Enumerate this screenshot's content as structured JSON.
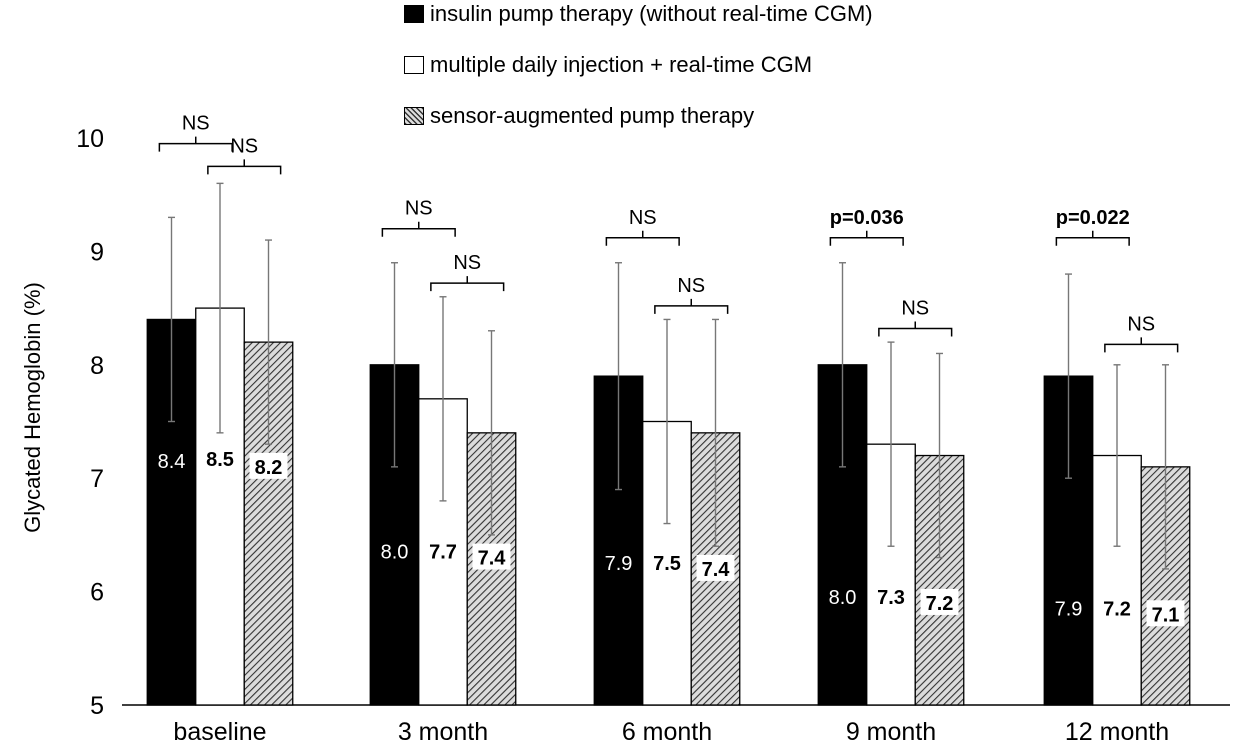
{
  "chart_data": {
    "type": "bar",
    "ylabel": "Glycated Hemoglobin (%)",
    "xlabel": "",
    "ylim": [
      5,
      10
    ],
    "yticks": [
      "5",
      "6",
      "7",
      "8",
      "9",
      "10"
    ],
    "categories": [
      "baseline",
      "3 month",
      "6 month",
      "9 month",
      "12 month"
    ],
    "series": [
      {
        "name": "insulin pump therapy (without real-time CGM)",
        "fill": "black",
        "values": [
          8.4,
          8.0,
          7.9,
          8.0,
          7.9
        ],
        "labels": [
          "8.4",
          "8.0",
          "7.9",
          "8.0",
          "7.9"
        ],
        "error_low": [
          7.5,
          7.1,
          6.9,
          7.1,
          7.0
        ],
        "error_high": [
          9.3,
          8.9,
          8.9,
          8.9,
          8.8
        ]
      },
      {
        "name": "multiple daily injection + real-time CGM",
        "fill": "white",
        "values": [
          8.5,
          7.7,
          7.5,
          7.3,
          7.2
        ],
        "labels": [
          "8.5",
          "7.7",
          "7.5",
          "7.3",
          "7.2"
        ],
        "error_low": [
          7.4,
          6.8,
          6.6,
          6.4,
          6.4
        ],
        "error_high": [
          9.6,
          8.6,
          8.4,
          8.2,
          8.0
        ]
      },
      {
        "name": "sensor-augmented pump therapy",
        "fill": "hatched",
        "values": [
          8.2,
          7.4,
          7.4,
          7.2,
          7.1
        ],
        "labels": [
          "8.2",
          "7.4",
          "7.4",
          "7.2",
          "7.1"
        ],
        "error_low": [
          7.3,
          6.5,
          6.4,
          6.3,
          6.2
        ],
        "error_high": [
          9.1,
          8.3,
          8.4,
          8.1,
          8.0
        ]
      }
    ],
    "label_y": [
      7.1,
      6.3,
      6.2,
      5.9,
      5.8
    ],
    "comparisons": [
      {
        "category": 0,
        "bars": [
          0,
          1
        ],
        "text": "NS",
        "bold": false,
        "level": 9.95
      },
      {
        "category": 0,
        "bars": [
          1,
          2
        ],
        "text": "NS",
        "bold": false,
        "level": 9.75
      },
      {
        "category": 1,
        "bars": [
          0,
          1
        ],
        "text": "NS",
        "bold": false,
        "level": 9.2
      },
      {
        "category": 1,
        "bars": [
          1,
          2
        ],
        "text": "NS",
        "bold": false,
        "level": 8.72
      },
      {
        "category": 2,
        "bars": [
          0,
          1
        ],
        "text": "NS",
        "bold": false,
        "level": 9.12
      },
      {
        "category": 2,
        "bars": [
          1,
          2
        ],
        "text": "NS",
        "bold": false,
        "level": 8.52
      },
      {
        "category": 3,
        "bars": [
          0,
          1
        ],
        "text": "p=0.036",
        "bold": true,
        "level": 9.12
      },
      {
        "category": 3,
        "bars": [
          1,
          2
        ],
        "text": "NS",
        "bold": false,
        "level": 8.32
      },
      {
        "category": 4,
        "bars": [
          0,
          1
        ],
        "text": "p=0.022",
        "bold": true,
        "level": 9.12
      },
      {
        "category": 4,
        "bars": [
          1,
          2
        ],
        "text": "NS",
        "bold": false,
        "level": 8.18
      }
    ]
  }
}
